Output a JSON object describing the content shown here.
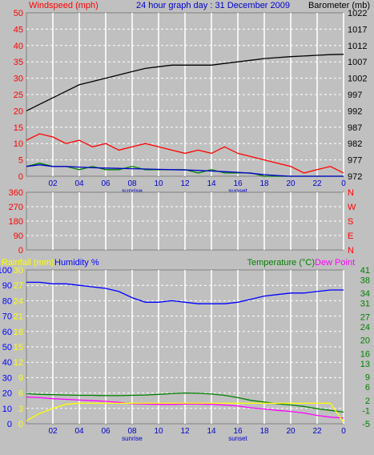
{
  "chart_data": [
    {
      "type": "line",
      "title": "24 hour graph day : 31 December 2009",
      "ylabel_left": "Windspeed (mph)",
      "ylabel_right": "Barometer (mb)",
      "x_ticks": [
        "02",
        "04",
        "06",
        "08",
        "10",
        "12",
        "14",
        "16",
        "18",
        "20",
        "22",
        "0"
      ],
      "x_markers": [
        "sunrise",
        "sunset"
      ],
      "y_left_ticks": [
        0,
        5,
        10,
        15,
        20,
        25,
        30,
        35,
        40,
        45,
        50
      ],
      "y_right_ticks": [
        972,
        977,
        982,
        987,
        992,
        997,
        1002,
        1007,
        1012,
        1017,
        1022
      ],
      "ylim_left": [
        0,
        50
      ],
      "ylim_right": [
        972,
        1022
      ],
      "xlim": [
        0,
        24
      ],
      "colors": {
        "windspeed": "#ff0000",
        "gust": "#008000",
        "average": "#0000cc",
        "barometer": "#000000",
        "title": "#0000cc"
      },
      "series": [
        {
          "name": "Barometer (mb)",
          "axis": "right",
          "x": [
            0,
            1,
            2,
            3,
            4,
            5,
            6,
            7,
            8,
            9,
            10,
            11,
            12,
            13,
            14,
            15,
            16,
            17,
            18,
            19,
            20,
            21,
            22,
            23,
            24
          ],
          "values": [
            992,
            994,
            996,
            998,
            1000,
            1001,
            1002,
            1003,
            1004,
            1005,
            1005.5,
            1006,
            1006,
            1006,
            1006,
            1006.5,
            1007,
            1007.5,
            1008,
            1008.3,
            1008.6,
            1008.8,
            1009,
            1009.2,
            1009.3
          ]
        },
        {
          "axis": "left",
          "x": [
            0,
            1,
            2,
            3,
            4,
            5,
            6,
            7,
            8,
            9,
            10,
            11,
            12,
            13,
            14,
            15,
            16,
            17,
            18,
            19,
            20,
            21,
            22,
            23,
            24
          ],
          "values": [
            11,
            13,
            12,
            10,
            11,
            9,
            10,
            8,
            9,
            10,
            9,
            8,
            7,
            8,
            7,
            9,
            7,
            6,
            5,
            4,
            3,
            1,
            2,
            3,
            1
          ]
        },
        {
          "axis": "left",
          "x": [
            0,
            1,
            2,
            3,
            4,
            5,
            6,
            7,
            8,
            9,
            10,
            11,
            12,
            13,
            14,
            15,
            16,
            17,
            18,
            19,
            20,
            21,
            22,
            23,
            24
          ],
          "values": [
            3,
            4,
            3,
            3,
            2,
            3,
            2,
            2,
            3,
            2,
            2,
            2,
            2,
            1,
            2,
            1,
            1,
            1,
            0,
            0,
            0,
            0,
            0,
            0,
            0
          ]
        },
        {
          "axis": "left",
          "x": [
            0,
            1,
            2,
            3,
            4,
            5,
            6,
            7,
            8,
            9,
            10,
            11,
            12,
            13,
            14,
            15,
            16,
            17,
            18,
            19,
            20,
            21,
            22,
            23,
            24
          ],
          "values": [
            3,
            3.5,
            3,
            3,
            2.8,
            2.6,
            2.5,
            2.4,
            2.3,
            2.2,
            2.1,
            2,
            1.9,
            1.8,
            1.6,
            1.4,
            1.2,
            0.9,
            0.5,
            0.2,
            0,
            0,
            0,
            0,
            0
          ]
        }
      ]
    },
    {
      "type": "scatter",
      "ylabel_right": [
        "N",
        "W",
        "S",
        "E",
        "N"
      ],
      "y_left_ticks": [
        0,
        90,
        180,
        270,
        360
      ],
      "ylim": [
        0,
        360
      ],
      "xlim": [
        0,
        24
      ],
      "series": [
        {
          "axis": "left",
          "note": "",
          "x": [],
          "values": []
        }
      ]
    },
    {
      "type": "line",
      "ylabel_left_1": "Rainfall (mm)",
      "ylabel_left_2": "Humidity %",
      "ylabel_right_1": "Temperature (°C)",
      "ylabel_right_2": "Dew Point",
      "x_ticks": [
        "02",
        "04",
        "06",
        "08",
        "10",
        "12",
        "14",
        "16",
        "18",
        "20",
        "22",
        "0"
      ],
      "x_markers": [
        "sunrise",
        "sunset"
      ],
      "y_humidity_ticks": [
        0,
        10,
        20,
        30,
        40,
        50,
        60,
        70,
        80,
        90,
        100
      ],
      "y_rain_ticks": [
        0,
        3,
        6,
        9,
        12,
        15,
        18,
        21,
        24,
        27,
        30
      ],
      "y_temp_ticks": [
        -5,
        -1,
        2,
        6,
        9,
        13,
        16,
        20,
        24,
        27,
        31,
        34,
        38,
        41
      ],
      "ylim_humidity": [
        0,
        100
      ],
      "ylim_temp": [
        -5,
        41
      ],
      "xlim": [
        0,
        24
      ],
      "colors": {
        "rain": "#ffff00",
        "humidity": "#0000ff",
        "temperature": "#008000",
        "dewpoint": "#ff00ff"
      },
      "series": [
        {
          "name": "Humidity %",
          "axis": "humidity",
          "x": [
            0,
            1,
            2,
            3,
            4,
            5,
            6,
            7,
            8,
            9,
            10,
            11,
            12,
            13,
            14,
            15,
            16,
            17,
            18,
            19,
            20,
            21,
            22,
            23,
            24
          ],
          "values": [
            92,
            92,
            91,
            91,
            90,
            89,
            88,
            86,
            82,
            79,
            79,
            80,
            79,
            78,
            78,
            78,
            79,
            81,
            83,
            84,
            85,
            85,
            86,
            87,
            87
          ]
        },
        {
          "name": "Temperature (°C)",
          "axis": "temp",
          "x": [
            0,
            1,
            2,
            3,
            4,
            5,
            6,
            7,
            8,
            9,
            10,
            11,
            12,
            13,
            14,
            15,
            16,
            17,
            18,
            19,
            20,
            21,
            22,
            23,
            24
          ],
          "values": [
            4,
            3.8,
            3.7,
            3.6,
            3.5,
            3.5,
            3.4,
            3.4,
            3.5,
            3.6,
            3.8,
            4,
            4.2,
            4.1,
            3.9,
            3.5,
            2.8,
            2,
            1.5,
            1,
            0.6,
            0.2,
            -0.5,
            -1,
            -1.5
          ]
        },
        {
          "name": "Dew Point",
          "axis": "temp",
          "x": [
            0,
            1,
            2,
            3,
            4,
            5,
            6,
            7,
            8,
            9,
            10,
            11,
            12,
            13,
            14,
            15,
            16,
            17,
            18,
            19,
            20,
            21,
            22,
            23,
            24
          ],
          "values": [
            3,
            2.8,
            2.5,
            2.3,
            2.1,
            1.9,
            1.7,
            1.4,
            1.0,
            0.9,
            0.8,
            0.8,
            0.9,
            0.9,
            0.8,
            0.6,
            0.3,
            -0.2,
            -0.6,
            -1,
            -1.3,
            -1.8,
            -2.5,
            -3,
            -3.3
          ]
        },
        {
          "name": "Rainfall (mm)",
          "axis": "rain",
          "x": [
            0,
            1,
            2,
            3,
            4,
            5,
            6,
            7,
            8,
            9,
            10,
            11,
            12,
            13,
            14,
            15,
            16,
            17,
            18,
            19,
            20,
            21,
            22,
            23,
            24
          ],
          "values": [
            0.6,
            2,
            3,
            3.8,
            4,
            4,
            4,
            4,
            4,
            4,
            4,
            4,
            4,
            4,
            4,
            4,
            4,
            4,
            4,
            4,
            4,
            4,
            4,
            4,
            0.3
          ]
        }
      ]
    }
  ]
}
